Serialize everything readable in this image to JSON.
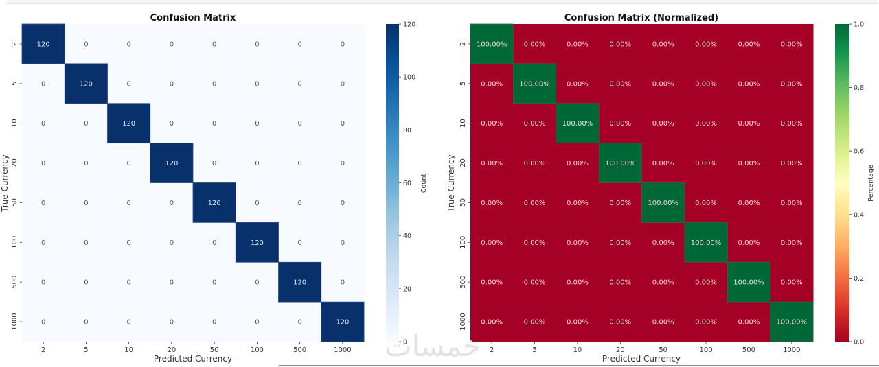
{
  "chart_data": [
    {
      "type": "heatmap",
      "title": "Confusion Matrix",
      "xlabel": "Predicted Currency",
      "ylabel": "True Currency",
      "x_categories": [
        "2",
        "5",
        "10",
        "20",
        "50",
        "100",
        "500",
        "1000"
      ],
      "y_categories": [
        "2",
        "5",
        "10",
        "20",
        "50",
        "100",
        "500",
        "1000"
      ],
      "values": [
        [
          120,
          0,
          0,
          0,
          0,
          0,
          0,
          0
        ],
        [
          0,
          120,
          0,
          0,
          0,
          0,
          0,
          0
        ],
        [
          0,
          0,
          120,
          0,
          0,
          0,
          0,
          0
        ],
        [
          0,
          0,
          0,
          120,
          0,
          0,
          0,
          0
        ],
        [
          0,
          0,
          0,
          0,
          120,
          0,
          0,
          0
        ],
        [
          0,
          0,
          0,
          0,
          0,
          120,
          0,
          0
        ],
        [
          0,
          0,
          0,
          0,
          0,
          0,
          120,
          0
        ],
        [
          0,
          0,
          0,
          0,
          0,
          0,
          0,
          120
        ]
      ],
      "cell_labels": [
        [
          "120",
          "0",
          "0",
          "0",
          "0",
          "0",
          "0",
          "0"
        ],
        [
          "0",
          "120",
          "0",
          "0",
          "0",
          "0",
          "0",
          "0"
        ],
        [
          "0",
          "0",
          "120",
          "0",
          "0",
          "0",
          "0",
          "0"
        ],
        [
          "0",
          "0",
          "0",
          "120",
          "0",
          "0",
          "0",
          "0"
        ],
        [
          "0",
          "0",
          "0",
          "0",
          "120",
          "0",
          "0",
          "0"
        ],
        [
          "0",
          "0",
          "0",
          "0",
          "0",
          "120",
          "0",
          "0"
        ],
        [
          "0",
          "0",
          "0",
          "0",
          "0",
          "0",
          "120",
          "0"
        ],
        [
          "0",
          "0",
          "0",
          "0",
          "0",
          "0",
          "0",
          "120"
        ]
      ],
      "colormap": "Blues",
      "colormap_stops": [
        "#f7fbff",
        "#deebf7",
        "#c6dbef",
        "#9ecae1",
        "#6baed6",
        "#4292c6",
        "#2171b5",
        "#08519c",
        "#08306b"
      ],
      "vmin": 0,
      "vmax": 120,
      "colorbar": {
        "label": "Count",
        "ticks": [
          0,
          20,
          40,
          60,
          80,
          100,
          120
        ],
        "tick_labels": [
          "0",
          "20",
          "40",
          "60",
          "80",
          "100",
          "120"
        ]
      },
      "grid": false
    },
    {
      "type": "heatmap",
      "title": "Confusion Matrix (Normalized)",
      "xlabel": "Predicted Currency",
      "ylabel": "True Currency",
      "x_categories": [
        "2",
        "5",
        "10",
        "20",
        "50",
        "100",
        "500",
        "1000"
      ],
      "y_categories": [
        "2",
        "5",
        "10",
        "20",
        "50",
        "100",
        "500",
        "1000"
      ],
      "values": [
        [
          1.0,
          0.0,
          0.0,
          0.0,
          0.0,
          0.0,
          0.0,
          0.0
        ],
        [
          0.0,
          1.0,
          0.0,
          0.0,
          0.0,
          0.0,
          0.0,
          0.0
        ],
        [
          0.0,
          0.0,
          1.0,
          0.0,
          0.0,
          0.0,
          0.0,
          0.0
        ],
        [
          0.0,
          0.0,
          0.0,
          1.0,
          0.0,
          0.0,
          0.0,
          0.0
        ],
        [
          0.0,
          0.0,
          0.0,
          0.0,
          1.0,
          0.0,
          0.0,
          0.0
        ],
        [
          0.0,
          0.0,
          0.0,
          0.0,
          0.0,
          1.0,
          0.0,
          0.0
        ],
        [
          0.0,
          0.0,
          0.0,
          0.0,
          0.0,
          0.0,
          1.0,
          0.0
        ],
        [
          0.0,
          0.0,
          0.0,
          0.0,
          0.0,
          0.0,
          0.0,
          1.0
        ]
      ],
      "cell_labels": [
        [
          "100.00%",
          "0.00%",
          "0.00%",
          "0.00%",
          "0.00%",
          "0.00%",
          "0.00%",
          "0.00%"
        ],
        [
          "0.00%",
          "100.00%",
          "0.00%",
          "0.00%",
          "0.00%",
          "0.00%",
          "0.00%",
          "0.00%"
        ],
        [
          "0.00%",
          "0.00%",
          "100.00%",
          "0.00%",
          "0.00%",
          "0.00%",
          "0.00%",
          "0.00%"
        ],
        [
          "0.00%",
          "0.00%",
          "0.00%",
          "100.00%",
          "0.00%",
          "0.00%",
          "0.00%",
          "0.00%"
        ],
        [
          "0.00%",
          "0.00%",
          "0.00%",
          "0.00%",
          "100.00%",
          "0.00%",
          "0.00%",
          "0.00%"
        ],
        [
          "0.00%",
          "0.00%",
          "0.00%",
          "0.00%",
          "0.00%",
          "100.00%",
          "0.00%",
          "0.00%"
        ],
        [
          "0.00%",
          "0.00%",
          "0.00%",
          "0.00%",
          "0.00%",
          "0.00%",
          "100.00%",
          "0.00%"
        ],
        [
          "0.00%",
          "0.00%",
          "0.00%",
          "0.00%",
          "0.00%",
          "0.00%",
          "0.00%",
          "100.00%"
        ]
      ],
      "colormap": "RdYlGn",
      "colormap_stops": [
        "#a50026",
        "#d73027",
        "#f46d43",
        "#fdae61",
        "#fee08b",
        "#ffffbf",
        "#d9ef8b",
        "#a6d96a",
        "#66bd63",
        "#1a9850",
        "#006837"
      ],
      "vmin": 0.0,
      "vmax": 1.0,
      "colorbar": {
        "label": "Percentage",
        "ticks": [
          0.0,
          0.2,
          0.4,
          0.6,
          0.8,
          1.0
        ],
        "tick_labels": [
          "0.0",
          "0.2",
          "0.4",
          "0.6",
          "0.8",
          "1.0"
        ]
      },
      "grid": false
    }
  ],
  "watermark": "خمسات"
}
